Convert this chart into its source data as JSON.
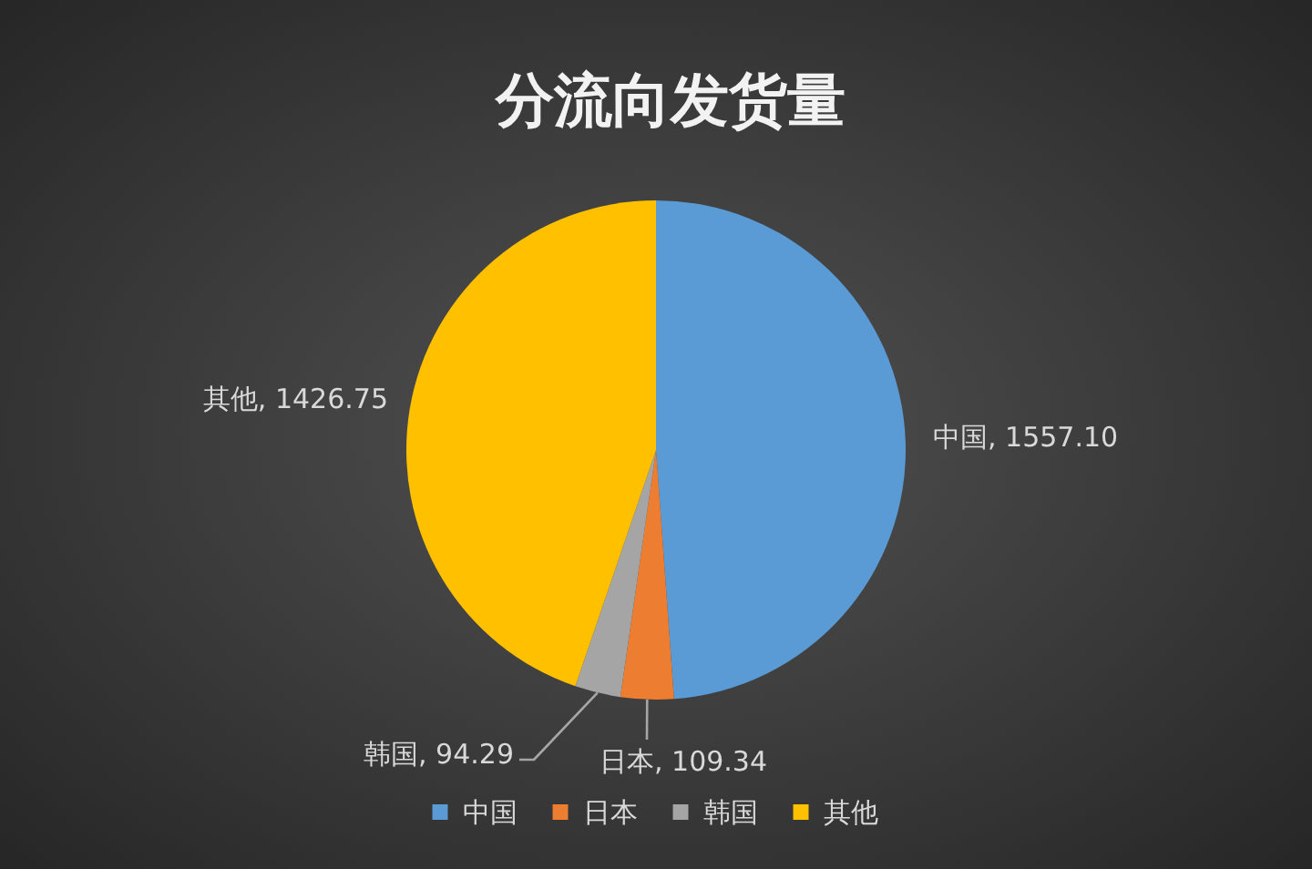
{
  "chart_data": {
    "type": "pie",
    "title": "分流向发货量",
    "categories": [
      "中国",
      "日本",
      "韩国",
      "其他"
    ],
    "values": [
      1557.1,
      109.34,
      94.29,
      1426.75
    ],
    "colors": [
      "#5b9bd5",
      "#ed7d31",
      "#a5a5a5",
      "#ffc000"
    ],
    "value_labels": [
      "中国, 1557.10",
      "日本, 109.34",
      "韩国, 94.29",
      "其他, 1426.75"
    ],
    "legend": "bottom"
  }
}
